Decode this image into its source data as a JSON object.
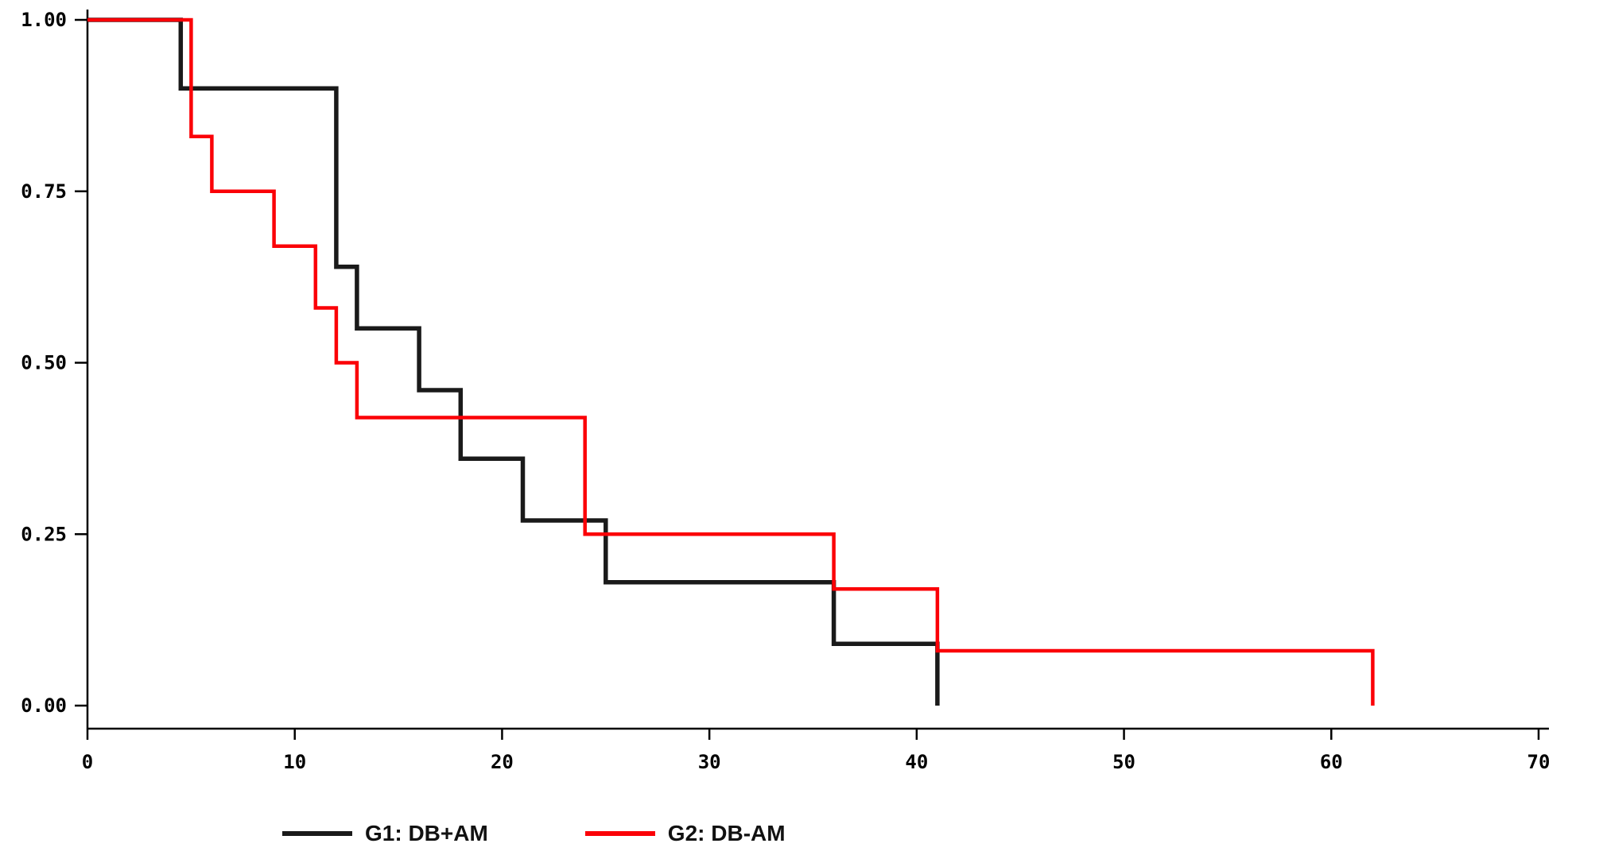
{
  "chart_data": {
    "type": "line",
    "subtype": "kaplan-meier-step",
    "title": "",
    "xlabel": "",
    "ylabel": "",
    "xlim": [
      0,
      70
    ],
    "ylim": [
      0,
      1
    ],
    "x_ticks": [
      0,
      10,
      20,
      30,
      40,
      50,
      60,
      70
    ],
    "x_tick_labels": [
      "0",
      "10",
      "20",
      "30",
      "40",
      "50",
      "60",
      "70"
    ],
    "y_ticks": [
      0.0,
      0.25,
      0.5,
      0.75,
      1.0
    ],
    "y_tick_labels": [
      "0.00",
      "0.25",
      "0.50",
      "0.75",
      "1.00"
    ],
    "grid": false,
    "legend_position": "bottom",
    "axis_color": "#000000",
    "series": [
      {
        "name": "G1: DB+AM",
        "color": "#1a1a1a",
        "stroke_width": 5.5,
        "points": [
          [
            0,
            1.0
          ],
          [
            4.5,
            0.9
          ],
          [
            12,
            0.64
          ],
          [
            13,
            0.55
          ],
          [
            16,
            0.46
          ],
          [
            18,
            0.36
          ],
          [
            21,
            0.27
          ],
          [
            25,
            0.18
          ],
          [
            36,
            0.09
          ],
          [
            41,
            0.0
          ]
        ]
      },
      {
        "name": "G2: DB-AM",
        "color": "#fb0007",
        "stroke_width": 4.5,
        "points": [
          [
            0,
            1.0
          ],
          [
            5,
            0.83
          ],
          [
            6,
            0.75
          ],
          [
            9,
            0.67
          ],
          [
            11,
            0.58
          ],
          [
            12,
            0.5
          ],
          [
            13,
            0.42
          ],
          [
            24,
            0.25
          ],
          [
            36,
            0.17
          ],
          [
            41,
            0.08
          ],
          [
            62,
            0.0
          ]
        ]
      }
    ]
  }
}
